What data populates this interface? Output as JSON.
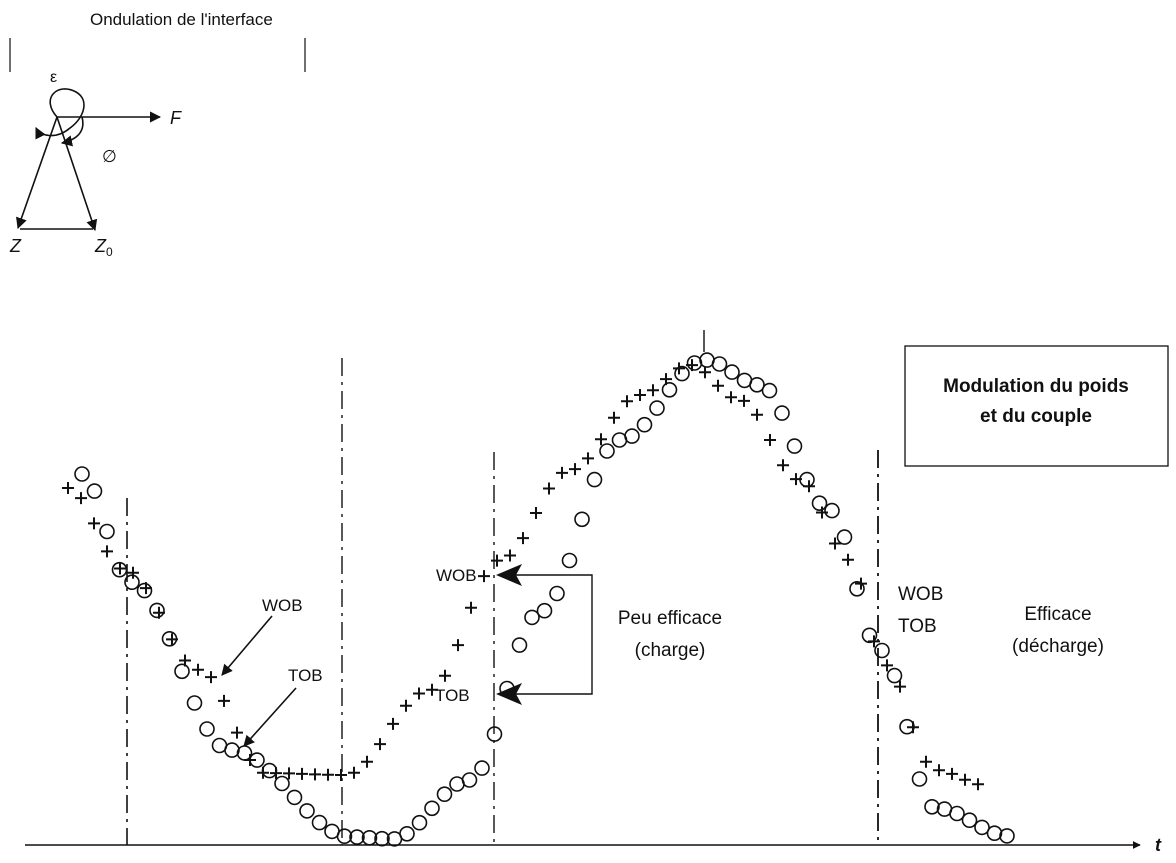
{
  "phasor": {
    "title": "Ondulation de l'interface",
    "epsilon": "ε",
    "force": "F",
    "phi": "∅",
    "z": "Z",
    "z0_base": "Z",
    "z0_sub": "0"
  },
  "waveform": {
    "box_line1": "Modulation du poids",
    "box_line2": "et du couple",
    "wob": "WOB",
    "tob": "TOB",
    "wob2": "WOB",
    "tob2": "TOB",
    "wob3": "WOB",
    "tob3": "TOB",
    "peu_line1": "Peu efficace",
    "peu_line2": "(charge)",
    "eff_line1": "Efficace",
    "eff_line2": "(décharge)",
    "t_axis": "t"
  },
  "colors": {
    "ink": "#111111",
    "background": "#ffffff"
  }
}
